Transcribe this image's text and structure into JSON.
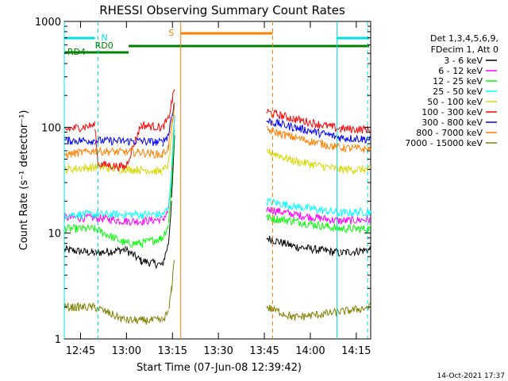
{
  "chart_data": {
    "type": "line",
    "title": "RHESSI Observing Summary Count Rates",
    "xlabel": "Start Time (07-Jun-08 12:39:42)",
    "ylabel": "Count Rate (s⁻¹ detector⁻¹)",
    "yscale": "log",
    "ylim": [
      1,
      1000
    ],
    "x_unit": "minutes since 12:39:42",
    "xlim": [
      0,
      100
    ],
    "y_tick_labels": [
      "1",
      "10",
      "100",
      "1000"
    ],
    "x_tick_labels": [
      "12:45",
      "13:00",
      "13:15",
      "13:30",
      "13:45",
      "14:00",
      "14:15"
    ],
    "legend_header": [
      "Det 1,3,4,5,6,9,",
      "FDecim 1, Att 0"
    ],
    "timestamp": "14-Oct-2021 17:37",
    "annotations": {
      "flags": [
        {
          "label": "N",
          "color": "#00e0e0"
        },
        {
          "label": "RD0",
          "color": "#008000"
        },
        {
          "label": "RD4",
          "color": "#008000"
        },
        {
          "label": "S",
          "color": "#ff7f00"
        }
      ]
    },
    "series": [
      {
        "name": "3 - 6 keV",
        "color": "#000000",
        "values": [
          [
            0,
            7
          ],
          [
            10,
            6.5
          ],
          [
            20,
            7
          ],
          [
            25,
            5.5
          ],
          [
            32,
            5
          ],
          [
            34,
            8
          ],
          [
            35,
            20
          ],
          [
            36,
            80
          ],
          [
            46,
            0
          ],
          [
            65,
            0
          ],
          [
            66,
            9
          ],
          [
            75,
            7.5
          ],
          [
            90,
            6.5
          ],
          [
            100,
            7
          ]
        ]
      },
      {
        "name": "6 - 12 keV",
        "color": "#ff00ff",
        "values": [
          [
            0,
            14
          ],
          [
            10,
            14
          ],
          [
            20,
            13
          ],
          [
            25,
            13
          ],
          [
            32,
            13.5
          ],
          [
            34,
            16
          ],
          [
            35,
            35
          ],
          [
            36,
            120
          ],
          [
            46,
            0
          ],
          [
            65,
            0
          ],
          [
            66,
            17
          ],
          [
            75,
            15
          ],
          [
            90,
            13
          ],
          [
            100,
            13.5
          ]
        ]
      },
      {
        "name": "12 - 25 keV",
        "color": "#00ff00",
        "values": [
          [
            0,
            11
          ],
          [
            10,
            11
          ],
          [
            20,
            8
          ],
          [
            25,
            8
          ],
          [
            32,
            9
          ],
          [
            34,
            12
          ],
          [
            35,
            30
          ],
          [
            36,
            100
          ],
          [
            46,
            0
          ],
          [
            65,
            0
          ],
          [
            66,
            14
          ],
          [
            75,
            13
          ],
          [
            90,
            11
          ],
          [
            100,
            11
          ]
        ]
      },
      {
        "name": "25 - 50 keV",
        "color": "#00ffff",
        "values": [
          [
            0,
            15
          ],
          [
            10,
            15
          ],
          [
            20,
            15
          ],
          [
            25,
            15
          ],
          [
            32,
            15
          ],
          [
            34,
            17
          ],
          [
            35,
            40
          ],
          [
            36,
            120
          ],
          [
            46,
            0
          ],
          [
            65,
            0
          ],
          [
            66,
            20
          ],
          [
            75,
            18
          ],
          [
            90,
            15.5
          ],
          [
            100,
            16
          ]
        ]
      },
      {
        "name": "50 - 100 keV",
        "color": "#d8d800",
        "values": [
          [
            0,
            40
          ],
          [
            10,
            42
          ],
          [
            20,
            40
          ],
          [
            25,
            40
          ],
          [
            32,
            38
          ],
          [
            34,
            45
          ],
          [
            35,
            80
          ],
          [
            36,
            150
          ],
          [
            46,
            0
          ],
          [
            65,
            0
          ],
          [
            66,
            60
          ],
          [
            75,
            48
          ],
          [
            90,
            40
          ],
          [
            100,
            40
          ]
        ]
      },
      {
        "name": "100 - 300 keV",
        "color": "#ff0000",
        "values": [
          [
            0,
            95
          ],
          [
            10,
            105
          ],
          [
            11,
            45
          ],
          [
            20,
            42
          ],
          [
            25,
            105
          ],
          [
            32,
            100
          ],
          [
            34,
            120
          ],
          [
            35,
            170
          ],
          [
            36,
            230
          ],
          [
            46,
            0
          ],
          [
            65,
            0
          ],
          [
            66,
            140
          ],
          [
            75,
            120
          ],
          [
            90,
            97
          ],
          [
            100,
            95
          ]
        ]
      },
      {
        "name": "300 - 800 keV",
        "color": "#0000ff",
        "values": [
          [
            0,
            75
          ],
          [
            10,
            75
          ],
          [
            20,
            74
          ],
          [
            25,
            74
          ],
          [
            32,
            72
          ],
          [
            34,
            85
          ],
          [
            35,
            130
          ],
          [
            36,
            170
          ],
          [
            46,
            0
          ],
          [
            65,
            0
          ],
          [
            66,
            115
          ],
          [
            75,
            100
          ],
          [
            90,
            80
          ],
          [
            100,
            77
          ]
        ]
      },
      {
        "name": "800 - 7000 keV",
        "color": "#ff8000",
        "values": [
          [
            0,
            55
          ],
          [
            10,
            60
          ],
          [
            20,
            58
          ],
          [
            25,
            58
          ],
          [
            32,
            55
          ],
          [
            34,
            65
          ],
          [
            35,
            110
          ],
          [
            36,
            160
          ],
          [
            46,
            0
          ],
          [
            65,
            0
          ],
          [
            66,
            95
          ],
          [
            75,
            80
          ],
          [
            90,
            64
          ],
          [
            100,
            62
          ]
        ]
      },
      {
        "name": "7000 - 15000 keV",
        "color": "#808000",
        "values": [
          [
            0,
            2
          ],
          [
            10,
            2
          ],
          [
            20,
            1.5
          ],
          [
            25,
            1.5
          ],
          [
            32,
            1.5
          ],
          [
            34,
            1.8
          ],
          [
            35,
            3
          ],
          [
            36,
            6
          ],
          [
            46,
            0
          ],
          [
            65,
            0
          ],
          [
            66,
            2
          ],
          [
            75,
            1.6
          ],
          [
            90,
            1.8
          ],
          [
            100,
            2
          ]
        ]
      }
    ]
  }
}
